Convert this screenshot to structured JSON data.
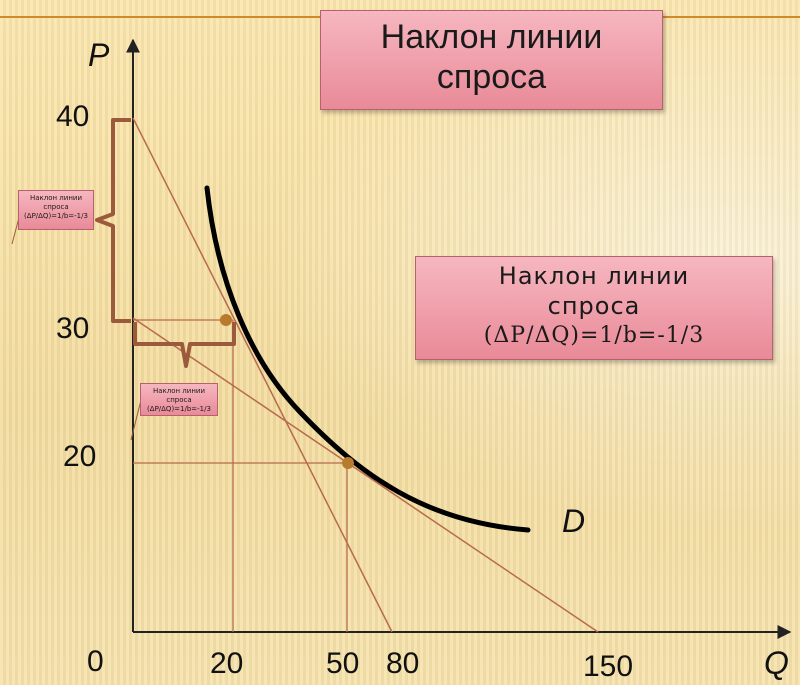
{
  "title": {
    "line1": "Наклон линии",
    "line2": "спроса"
  },
  "info": {
    "line1": "Наклон линии",
    "line2": "спроса",
    "formula": "(ΔP/ΔQ)=1/b=-1/3"
  },
  "note_a": {
    "line1": "Наклон линии",
    "line2": "спроса",
    "formula": "(ΔP/ΔQ)=1/b=-1/3"
  },
  "note_b": {
    "line1": "Наклон линии",
    "line2": "спроса",
    "formula": "(ΔP/ΔQ)=1/b=-1/3"
  },
  "axes": {
    "y_label": "P",
    "x_label": "Q",
    "origin": "0"
  },
  "y_ticks": [
    "40",
    "30",
    "20"
  ],
  "x_ticks": [
    "20",
    "50",
    "80",
    "150"
  ],
  "curve_label": "D",
  "colors": {
    "bracket": "#9c5a3c",
    "line": "#b86a4e",
    "curve": "#000000",
    "point": "#b87a2c",
    "box_top": "#f6b7c0",
    "box_bottom": "#e98a98"
  }
}
